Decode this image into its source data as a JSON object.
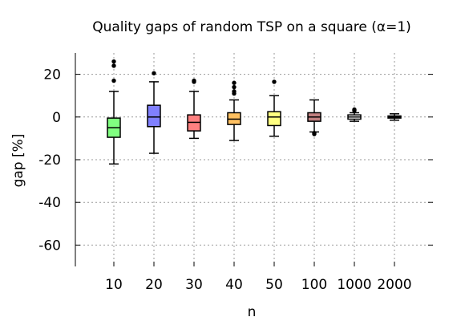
{
  "chart_data": {
    "type": "box",
    "title": "Quality gaps of random TSP on a square (α=1)",
    "xlabel": "n",
    "ylabel": "gap [%]",
    "ylim": [
      -70,
      30
    ],
    "yticks": [
      20,
      0,
      -20,
      -40,
      -60
    ],
    "ytick_labels": [
      "20",
      "0",
      "-20",
      "-40",
      "-60"
    ],
    "grid": true,
    "categories": [
      "10",
      "20",
      "30",
      "40",
      "50",
      "100",
      "1000",
      "2000"
    ],
    "boxes": [
      {
        "label": "10",
        "color": "#80ff80",
        "whislo": -22,
        "q1": -9.5,
        "median": -5,
        "q3": -0.5,
        "whishi": 12,
        "fliers": [
          17,
          24,
          26
        ]
      },
      {
        "label": "20",
        "color": "#8080ff",
        "whislo": -17,
        "q1": -4.5,
        "median": 0,
        "q3": 5.5,
        "whishi": 16.5,
        "fliers": [
          20.5
        ]
      },
      {
        "label": "30",
        "color": "#ff8080",
        "whislo": -10,
        "q1": -6.5,
        "median": -2.5,
        "q3": 1,
        "whishi": 12,
        "fliers": [
          16.5,
          17
        ]
      },
      {
        "label": "40",
        "color": "#ffc060",
        "whislo": -11,
        "q1": -3.5,
        "median": -1,
        "q3": 2,
        "whishi": 8,
        "fliers": [
          11,
          12,
          14,
          16
        ]
      },
      {
        "label": "50",
        "color": "#ffff80",
        "whislo": -9,
        "q1": -4,
        "median": 0,
        "q3": 2.5,
        "whishi": 10,
        "fliers": [
          16.5
        ]
      },
      {
        "label": "100",
        "color": "#c08080",
        "whislo": -7,
        "q1": -2,
        "median": 0,
        "q3": 2,
        "whishi": 8,
        "fliers": [
          -7.5,
          -8
        ]
      },
      {
        "label": "1000",
        "color": "#ffffff",
        "whislo": -2,
        "q1": -1,
        "median": 0,
        "q3": 1,
        "whishi": 2,
        "fliers": [
          3,
          3.5
        ]
      },
      {
        "label": "2000",
        "color": "#ffffff",
        "whislo": -1.5,
        "q1": -0.5,
        "median": 0,
        "q3": 0.5,
        "whishi": 1.5,
        "fliers": []
      }
    ]
  }
}
